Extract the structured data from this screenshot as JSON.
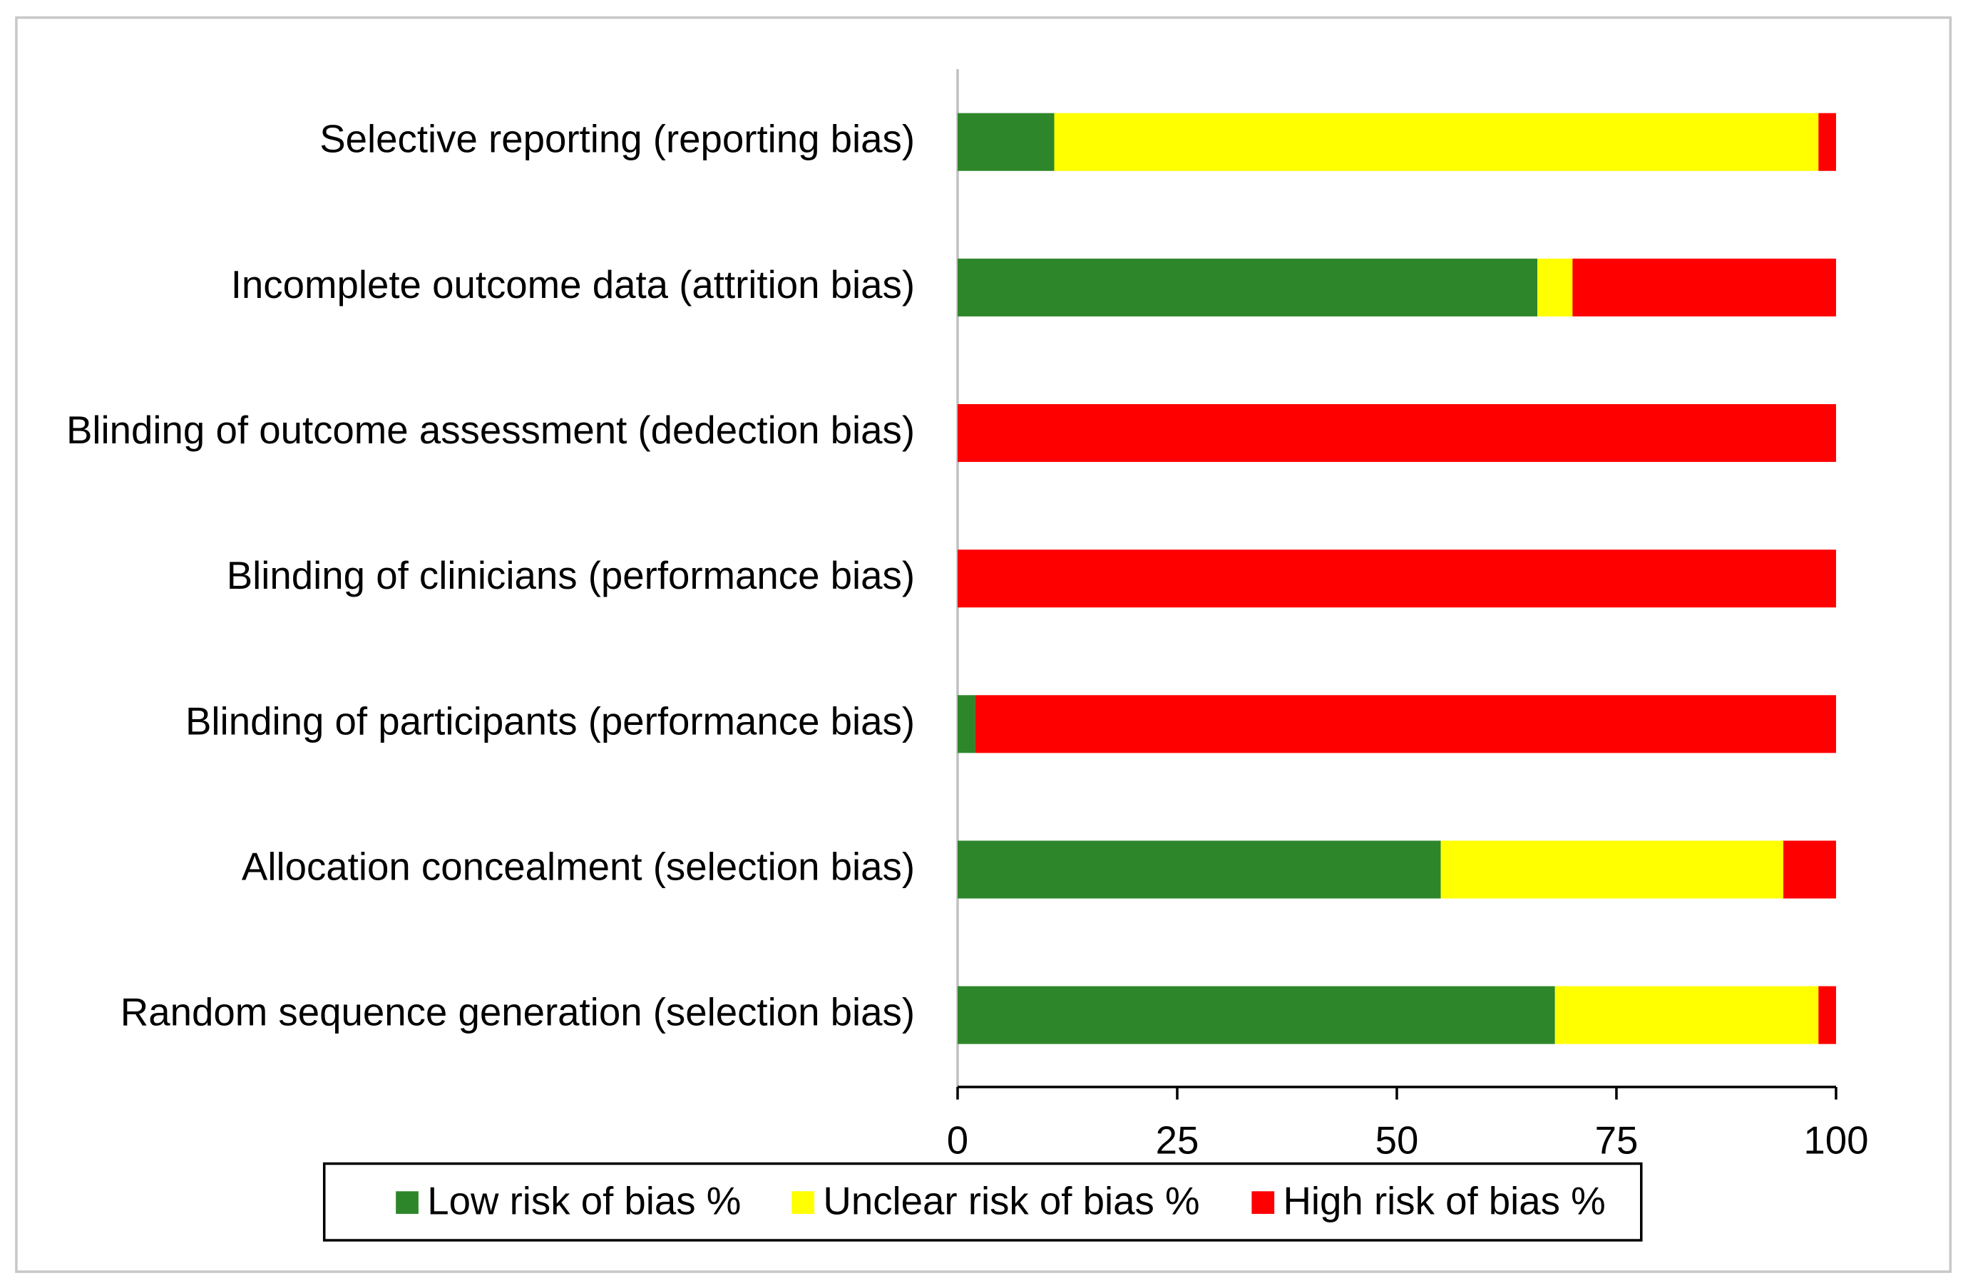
{
  "chart_data": {
    "type": "stacked-bar-horizontal",
    "categories": [
      "Selective reporting (reporting bias)",
      "Incomplete outcome data (attrition bias)",
      "Blinding of outcome assessment (dedection bias)",
      "Blinding of clinicians (performance bias)",
      "Blinding of participants (performance bias)",
      "Allocation concealment (selection bias)",
      "Random sequence generation (selection bias)"
    ],
    "series": [
      {
        "name": "Low risk of bias %",
        "color": "#2e862b",
        "values": [
          11,
          66,
          0,
          0,
          2,
          55,
          68
        ]
      },
      {
        "name": "Unclear risk of bias %",
        "color": "#ffff00",
        "values": [
          87,
          4,
          0,
          0,
          0,
          39,
          30
        ]
      },
      {
        "name": "High risk of bias %",
        "color": "#ff0000",
        "values": [
          2,
          30,
          100,
          100,
          98,
          6,
          2
        ]
      }
    ],
    "xlim": [
      0,
      100
    ],
    "xticks": [
      0,
      25,
      50,
      75,
      100
    ]
  }
}
